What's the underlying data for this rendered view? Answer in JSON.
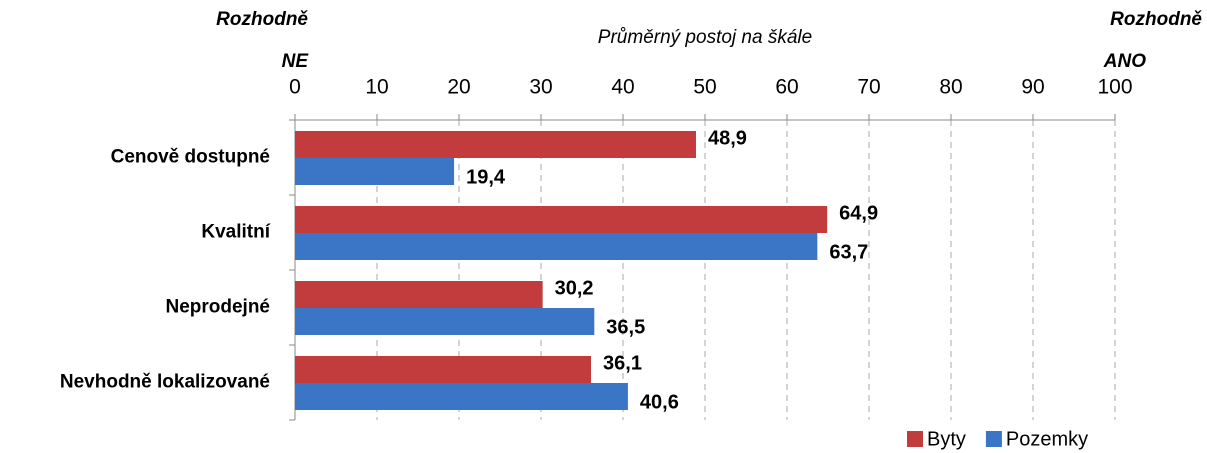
{
  "chart_data": {
    "type": "hbar",
    "xlabel": "Průměrný postoj na škále",
    "left_label": [
      "Rozhodně",
      "NE"
    ],
    "right_label": [
      "Rozhodně",
      "ANO"
    ],
    "categories": [
      "Cenově dostupné",
      "Kvalitní",
      "Neprodejné",
      "Nevhodně lokalizované"
    ],
    "series": [
      {
        "name": "Byty",
        "color": "#c23b3d",
        "values": [
          48.9,
          64.9,
          30.2,
          36.1
        ],
        "value_labels": [
          "48,9",
          "64,9",
          "30,2",
          "36,1"
        ]
      },
      {
        "name": "Pozemky",
        "color": "#3b76c6",
        "values": [
          19.4,
          63.7,
          36.5,
          40.6
        ],
        "value_labels": [
          "19,4",
          "63,7",
          "36,5",
          "40,6"
        ]
      }
    ],
    "xlim": [
      0,
      100
    ],
    "xticks": [
      0,
      10,
      20,
      30,
      40,
      50,
      60,
      70,
      80,
      90,
      100
    ],
    "grid": true,
    "legend": "bottom-right"
  }
}
